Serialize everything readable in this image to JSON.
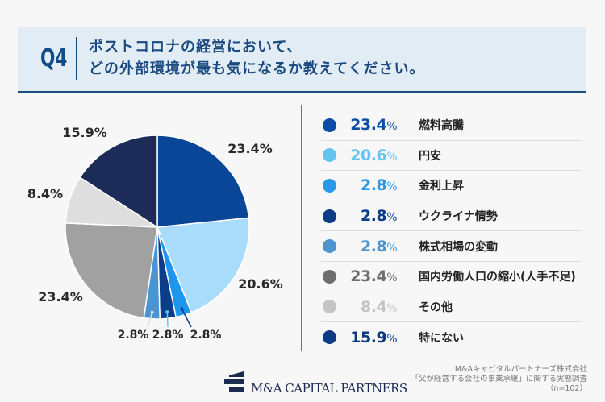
{
  "header": {
    "q": "Q4",
    "title_line1": "ポストコロナの経営において、",
    "title_line2": "どの外部環境が最も気になるか教えてください。"
  },
  "chart_data": {
    "type": "pie",
    "start": "top, clockwise",
    "slices": [
      {
        "label": "燃料高騰",
        "value": 23.4,
        "pie_color": "#0a4697",
        "legend_color": "#0a4ea6"
      },
      {
        "label": "円安",
        "value": 20.6,
        "pie_color": "#a8dcfa",
        "legend_color": "#66c4f2"
      },
      {
        "label": "金利上昇",
        "value": 2.8,
        "pie_color": "#1e96ee",
        "legend_color": "#2a98e8"
      },
      {
        "label": "ウクライナ情勢",
        "value": 2.8,
        "pie_color": "#0b3d88",
        "legend_color": "#0b3d88"
      },
      {
        "label": "株式相場の変動",
        "value": 2.8,
        "pie_color": "#4a94d2",
        "legend_color": "#4a94d2"
      },
      {
        "label": "国内労働人口の縮小(人手不足)",
        "value": 23.4,
        "pie_color": "#a1a1a1",
        "legend_color": "#6e6e6e"
      },
      {
        "label": "その他",
        "value": 8.4,
        "pie_color": "#dedede",
        "legend_color": "#c4c4c4"
      },
      {
        "label": "特にない",
        "value": 15.9,
        "pie_color": "#1d2b58",
        "legend_color": "#0c3a84"
      }
    ],
    "value_labels": [
      "23.4%",
      "20.6%",
      "2.8%",
      "2.8%",
      "2.8%",
      "23.4%",
      "8.4%",
      "15.9%"
    ],
    "unit": "%"
  },
  "footer": {
    "logo_text": "M&A CAPITAL PARTNERS",
    "source_line1": "M&Aキャピタルパートナーズ株式会社",
    "source_line2": "「父が経営する会社の事業承継」に関する実態調査",
    "source_line3": "（n=102）"
  }
}
